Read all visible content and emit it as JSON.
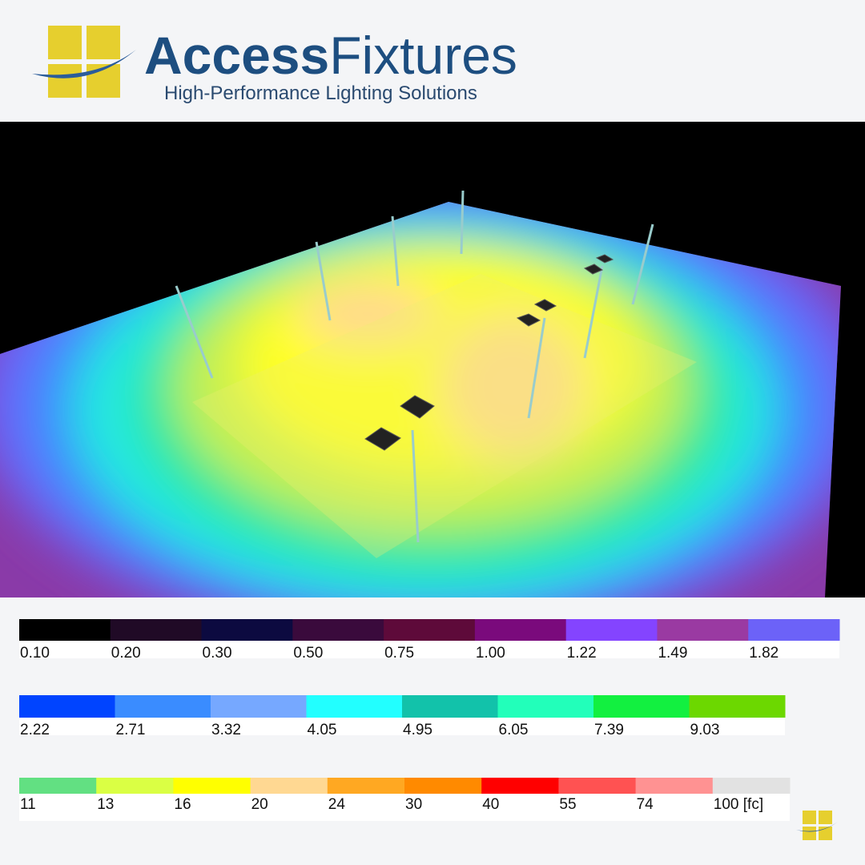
{
  "header": {
    "brand_bold": "Access",
    "brand_light": "Fixtures",
    "tagline": "High-Performance Lighting Solutions"
  },
  "legend": {
    "rows": [
      {
        "swatches": [
          {
            "label": "0.10",
            "color": "#000000"
          },
          {
            "label": "0.20",
            "color": "#200a26"
          },
          {
            "label": "0.30",
            "color": "#0c0a40"
          },
          {
            "label": "0.50",
            "color": "#3a0a3c"
          },
          {
            "label": "0.75",
            "color": "#5e0a3a"
          },
          {
            "label": "1.00",
            "color": "#7a0a7c"
          },
          {
            "label": "1.22",
            "color": "#8444ff"
          },
          {
            "label": "1.49",
            "color": "#9a3aa2"
          },
          {
            "label": "1.82",
            "color": "#6c62f8"
          }
        ]
      },
      {
        "swatches": [
          {
            "label": "2.22",
            "color": "#0044ff"
          },
          {
            "label": "2.71",
            "color": "#3a8cff"
          },
          {
            "label": "3.32",
            "color": "#76a8ff"
          },
          {
            "label": "4.05",
            "color": "#22ffff"
          },
          {
            "label": "4.95",
            "color": "#12c2aa"
          },
          {
            "label": "6.05",
            "color": "#22ffba"
          },
          {
            "label": "7.39",
            "color": "#12f040"
          },
          {
            "label": "9.03",
            "color": "#6cd800"
          }
        ]
      },
      {
        "swatches": [
          {
            "label": "11",
            "color": "#62e082"
          },
          {
            "label": "13",
            "color": "#daff44"
          },
          {
            "label": "16",
            "color": "#ffff00"
          },
          {
            "label": "20",
            "color": "#ffd892"
          },
          {
            "label": "24",
            "color": "#ffa822"
          },
          {
            "label": "30",
            "color": "#ff8a00"
          },
          {
            "label": "40",
            "color": "#ff0000"
          },
          {
            "label": "55",
            "color": "#ff5252"
          },
          {
            "label": "74",
            "color": "#ff9292"
          },
          {
            "label": "100 [fc]",
            "color": "#e2e2e2"
          }
        ]
      }
    ]
  }
}
